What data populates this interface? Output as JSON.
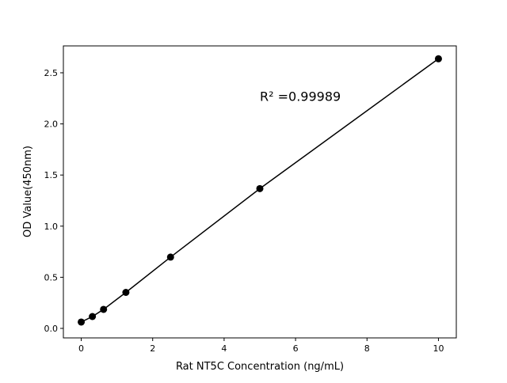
{
  "chart_data": {
    "type": "line",
    "title": "",
    "xlabel": "Rat NT5C Concentration (ng/mL)",
    "ylabel": "OD Value(450nm)",
    "xlim": [
      -0.5,
      10.5
    ],
    "ylim": [
      -0.093,
      2.763
    ],
    "xticks": [
      0,
      2,
      4,
      6,
      8,
      10
    ],
    "xtick_labels": [
      "0",
      "2",
      "4",
      "6",
      "8",
      "10"
    ],
    "yticks": [
      0.0,
      0.5,
      1.0,
      1.5,
      2.0,
      2.5
    ],
    "ytick_labels": [
      "0.0",
      "0.5",
      "1.0",
      "1.5",
      "2.0",
      "2.5"
    ],
    "grid": false,
    "series": [
      {
        "x": [
          0,
          0.3125,
          0.625,
          1.25,
          2.5,
          5,
          10
        ],
        "y": [
          0.062,
          0.116,
          0.186,
          0.352,
          0.697,
          1.367,
          2.637
        ],
        "color": "#000000",
        "marker": "circle"
      }
    ],
    "annotations": [
      {
        "text": "R² =0.99989",
        "x": 5.0,
        "y": 2.35
      }
    ]
  }
}
